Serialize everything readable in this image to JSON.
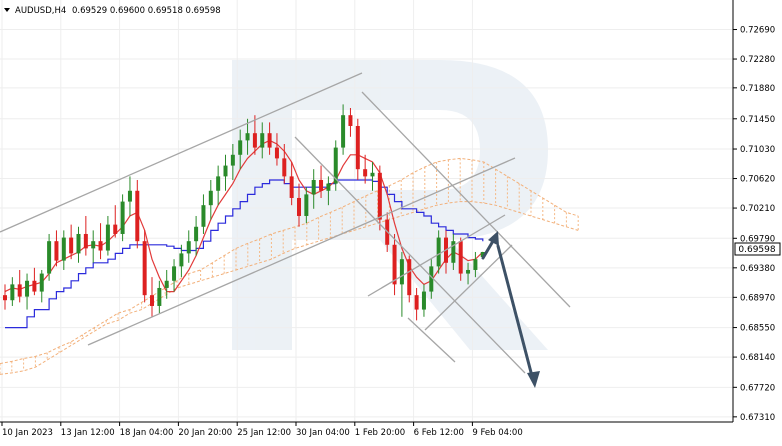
{
  "header": {
    "symbol_timeframe": "AUDUSD,H4",
    "quote": "0.69529 0.69600 0.69518 0.69598"
  },
  "price_label": "0.69598",
  "colors": {
    "bull_candle": "#2a8a2a",
    "bear_candle": "#dd2020",
    "tenkan_line": "#e23a3a",
    "kijun_line": "#2b2bdc",
    "cloud_outline": "#f2b07a",
    "cloud_hatch": "#f5b885",
    "channel_lines": "#a6a6a6",
    "forecast_arrow": "#3d5166",
    "watermark": "#dde6ee"
  },
  "icons": {
    "menu": "triangle-down-icon",
    "watermark": "roboforex-r-logo-icon"
  },
  "chart_data": {
    "type": "candlestick",
    "symbol": "AUDUSD",
    "timeframe": "H4",
    "last_price": 0.69598,
    "ylim": [
      0.6728,
      0.7285
    ],
    "y_ticks": [
      "0.72690",
      "0.72280",
      "0.71880",
      "0.71450",
      "0.71030",
      "0.70620",
      "0.70210",
      "0.69790",
      "0.69380",
      "0.68970",
      "0.68550",
      "0.68140",
      "0.67720",
      "0.67310"
    ],
    "x_ticks": [
      "10 Jan 2023",
      "13 Jan 12:00",
      "18 Jan 04:00",
      "20 Jan 20:00",
      "25 Jan 12:00",
      "30 Jan 04:00",
      "1 Feb 20:00",
      "6 Feb 12:00",
      "9 Feb 04:00"
    ],
    "candles_ohlc": [
      [
        0.69,
        0.6915,
        0.688,
        0.6893
      ],
      [
        0.6893,
        0.6925,
        0.6885,
        0.6915
      ],
      [
        0.6915,
        0.6935,
        0.689,
        0.6898
      ],
      [
        0.6898,
        0.693,
        0.688,
        0.692
      ],
      [
        0.692,
        0.6938,
        0.69,
        0.6905
      ],
      [
        0.6905,
        0.6935,
        0.689,
        0.693
      ],
      [
        0.693,
        0.6985,
        0.692,
        0.6975
      ],
      [
        0.6975,
        0.699,
        0.694,
        0.6948
      ],
      [
        0.6948,
        0.699,
        0.6935,
        0.698
      ],
      [
        0.698,
        0.6998,
        0.695,
        0.6958
      ],
      [
        0.6958,
        0.6995,
        0.6945,
        0.6985
      ],
      [
        0.6985,
        0.701,
        0.6955,
        0.6965
      ],
      [
        0.6965,
        0.699,
        0.6945,
        0.6975
      ],
      [
        0.6975,
        0.7,
        0.695,
        0.6962
      ],
      [
        0.6962,
        0.701,
        0.6955,
        0.6998
      ],
      [
        0.6998,
        0.7025,
        0.698,
        0.6985
      ],
      [
        0.6985,
        0.704,
        0.6975,
        0.703
      ],
      [
        0.703,
        0.7065,
        0.701,
        0.7045
      ],
      [
        0.7045,
        0.706,
        0.6965,
        0.6975
      ],
      [
        0.6975,
        0.699,
        0.689,
        0.69
      ],
      [
        0.69,
        0.6925,
        0.687,
        0.6885
      ],
      [
        0.6885,
        0.692,
        0.6875,
        0.691
      ],
      [
        0.691,
        0.6935,
        0.6895,
        0.692
      ],
      [
        0.692,
        0.695,
        0.6905,
        0.694
      ],
      [
        0.694,
        0.697,
        0.6925,
        0.6958
      ],
      [
        0.6958,
        0.699,
        0.6945,
        0.6975
      ],
      [
        0.6975,
        0.701,
        0.6955,
        0.6995
      ],
      [
        0.6995,
        0.704,
        0.6985,
        0.7025
      ],
      [
        0.7025,
        0.706,
        0.7005,
        0.7045
      ],
      [
        0.7045,
        0.708,
        0.7025,
        0.7065
      ],
      [
        0.7065,
        0.7095,
        0.7045,
        0.708
      ],
      [
        0.708,
        0.711,
        0.706,
        0.7095
      ],
      [
        0.7095,
        0.713,
        0.7075,
        0.7115
      ],
      [
        0.7115,
        0.7145,
        0.7095,
        0.7125
      ],
      [
        0.7125,
        0.715,
        0.7095,
        0.7105
      ],
      [
        0.7105,
        0.714,
        0.709,
        0.7125
      ],
      [
        0.7125,
        0.714,
        0.7095,
        0.7105
      ],
      [
        0.7105,
        0.7125,
        0.708,
        0.709
      ],
      [
        0.709,
        0.711,
        0.7055,
        0.7065
      ],
      [
        0.7065,
        0.7085,
        0.7025,
        0.7035
      ],
      [
        0.7035,
        0.7055,
        0.6995,
        0.701
      ],
      [
        0.701,
        0.705,
        0.7,
        0.704
      ],
      [
        0.704,
        0.7075,
        0.702,
        0.706
      ],
      [
        0.706,
        0.708,
        0.7035,
        0.7045
      ],
      [
        0.7045,
        0.7065,
        0.7025,
        0.7055
      ],
      [
        0.7055,
        0.7115,
        0.7045,
        0.7105
      ],
      [
        0.7105,
        0.7165,
        0.7095,
        0.715
      ],
      [
        0.715,
        0.716,
        0.712,
        0.7135
      ],
      [
        0.7135,
        0.7145,
        0.706,
        0.7075
      ],
      [
        0.7075,
        0.7095,
        0.7055,
        0.7065
      ],
      [
        0.7065,
        0.7085,
        0.7045,
        0.707
      ],
      [
        0.707,
        0.708,
        0.699,
        0.7005
      ],
      [
        0.7005,
        0.7015,
        0.696,
        0.697
      ],
      [
        0.697,
        0.6985,
        0.69,
        0.6915
      ],
      [
        0.6915,
        0.696,
        0.687,
        0.695
      ],
      [
        0.695,
        0.6955,
        0.689,
        0.69
      ],
      [
        0.69,
        0.691,
        0.6865,
        0.688
      ],
      [
        0.688,
        0.6915,
        0.687,
        0.6905
      ],
      [
        0.6905,
        0.695,
        0.6895,
        0.694
      ],
      [
        0.694,
        0.699,
        0.693,
        0.698
      ],
      [
        0.698,
        0.699,
        0.693,
        0.6945
      ],
      [
        0.6945,
        0.6985,
        0.6935,
        0.6975
      ],
      [
        0.6975,
        0.698,
        0.692,
        0.693
      ],
      [
        0.693,
        0.6945,
        0.6915,
        0.6935
      ],
      [
        0.6935,
        0.696,
        0.6925,
        0.695
      ],
      [
        0.6953,
        0.696,
        0.6952,
        0.696
      ]
    ],
    "tenkan_sen": [
      0.6905,
      0.691,
      0.6908,
      0.6912,
      0.6915,
      0.6918,
      0.693,
      0.6945,
      0.695,
      0.6955,
      0.696,
      0.6968,
      0.697,
      0.6968,
      0.6975,
      0.6985,
      0.6995,
      0.701,
      0.7015,
      0.699,
      0.695,
      0.6925,
      0.6905,
      0.6905,
      0.692,
      0.6935,
      0.6955,
      0.698,
      0.7005,
      0.7025,
      0.704,
      0.7055,
      0.7075,
      0.709,
      0.71,
      0.711,
      0.7115,
      0.711,
      0.71,
      0.7085,
      0.706,
      0.7045,
      0.704,
      0.7045,
      0.705,
      0.706,
      0.708,
      0.7095,
      0.7095,
      0.709,
      0.7085,
      0.707,
      0.704,
      0.7,
      0.6965,
      0.694,
      0.6925,
      0.6915,
      0.692,
      0.6935,
      0.695,
      0.696,
      0.6955,
      0.6948,
      0.695,
      0.696
    ],
    "kijun_sen": [
      0.6855,
      0.6855,
      0.6855,
      0.687,
      0.688,
      0.688,
      0.6895,
      0.6905,
      0.691,
      0.692,
      0.693,
      0.6938,
      0.6945,
      0.6945,
      0.695,
      0.6958,
      0.6965,
      0.697,
      0.697,
      0.697,
      0.697,
      0.697,
      0.6968,
      0.6965,
      0.6962,
      0.6962,
      0.6965,
      0.6975,
      0.699,
      0.7,
      0.701,
      0.702,
      0.703,
      0.704,
      0.705,
      0.7055,
      0.706,
      0.706,
      0.7055,
      0.705,
      0.705,
      0.705,
      0.705,
      0.705,
      0.7055,
      0.706,
      0.706,
      0.706,
      0.706,
      0.706,
      0.7058,
      0.705,
      0.704,
      0.703,
      0.702,
      0.702,
      0.7015,
      0.701,
      0.7,
      0.6995,
      0.699,
      0.6985,
      0.6985,
      0.698,
      0.6978,
      0.6975
    ],
    "kumo_span_a": [
      0.6805,
      0.6808,
      0.6812,
      0.6815,
      0.682,
      0.6828,
      0.6835,
      0.6845,
      0.6855,
      0.6865,
      0.6875,
      0.688,
      0.689,
      0.69,
      0.691,
      0.692,
      0.693,
      0.6935,
      0.6945,
      0.6955,
      0.6965,
      0.6972,
      0.6978,
      0.6985,
      0.699,
      0.6995,
      0.7,
      0.7008,
      0.7015,
      0.7022,
      0.703,
      0.7038,
      0.7045,
      0.7052,
      0.706,
      0.707,
      0.7078,
      0.7085,
      0.7088,
      0.709,
      0.7088,
      0.7085,
      0.7075,
      0.7065,
      0.7055,
      0.7045,
      0.7035,
      0.7025,
      0.7015,
      0.701
    ],
    "kumo_span_b": [
      0.679,
      0.6792,
      0.6795,
      0.68,
      0.681,
      0.682,
      0.683,
      0.684,
      0.685,
      0.686,
      0.6865,
      0.6875,
      0.688,
      0.689,
      0.69,
      0.691,
      0.6915,
      0.692,
      0.6925,
      0.693,
      0.6935,
      0.694,
      0.6945,
      0.695,
      0.6958,
      0.6965,
      0.697,
      0.6975,
      0.698,
      0.6985,
      0.699,
      0.6995,
      0.7,
      0.7005,
      0.701,
      0.7015,
      0.702,
      0.7025,
      0.7028,
      0.703,
      0.703,
      0.7028,
      0.7025,
      0.702,
      0.7015,
      0.701,
      0.7005,
      0.7,
      0.6995,
      0.699
    ]
  }
}
